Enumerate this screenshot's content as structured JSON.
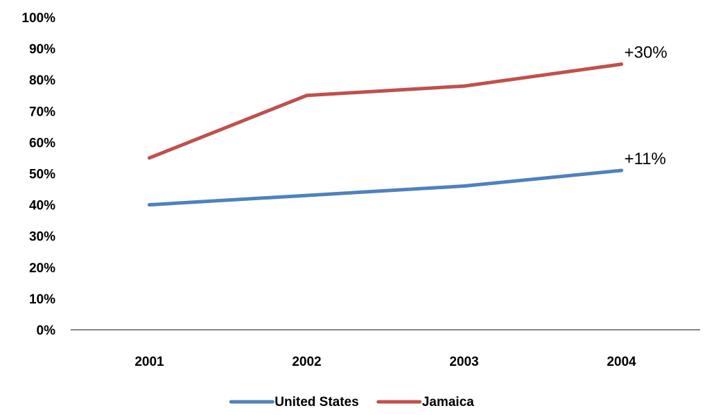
{
  "chart_data": {
    "type": "line",
    "categories": [
      "2001",
      "2002",
      "2003",
      "2004"
    ],
    "series": [
      {
        "name": "United States",
        "values": [
          40,
          43,
          46,
          51
        ],
        "color": "#4f81bd"
      },
      {
        "name": "Jamaica",
        "values": [
          55,
          75,
          78,
          85
        ],
        "color": "#c0504d"
      }
    ],
    "y_ticks": [
      "0%",
      "10%",
      "20%",
      "30%",
      "40%",
      "50%",
      "60%",
      "70%",
      "80%",
      "90%",
      "100%"
    ],
    "ylim": [
      0,
      100
    ],
    "annotations": [
      {
        "series": "Jamaica",
        "text": "+30%"
      },
      {
        "series": "United States",
        "text": "+11%"
      }
    ],
    "grid": false,
    "legend_position": "bottom"
  }
}
